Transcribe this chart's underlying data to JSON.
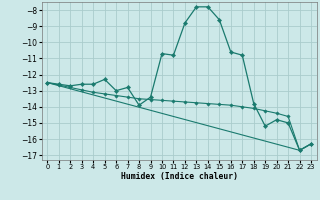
{
  "xlabel": "Humidex (Indice chaleur)",
  "background_color": "#cce8e8",
  "grid_color": "#aacccc",
  "line_color": "#1a7a6e",
  "xlim": [
    -0.5,
    23.5
  ],
  "ylim": [
    -17.3,
    -7.5
  ],
  "yticks": [
    -17,
    -16,
    -15,
    -14,
    -13,
    -12,
    -11,
    -10,
    -9,
    -8
  ],
  "xticks": [
    0,
    1,
    2,
    3,
    4,
    5,
    6,
    7,
    8,
    9,
    10,
    11,
    12,
    13,
    14,
    15,
    16,
    17,
    18,
    19,
    20,
    21,
    22,
    23
  ],
  "series1": [
    [
      0,
      -12.5
    ],
    [
      1,
      -12.6
    ],
    [
      2,
      -12.7
    ],
    [
      3,
      -12.6
    ],
    [
      4,
      -12.6
    ],
    [
      5,
      -12.3
    ],
    [
      6,
      -13.0
    ],
    [
      7,
      -12.8
    ],
    [
      8,
      -13.9
    ],
    [
      9,
      -13.4
    ],
    [
      10,
      -10.7
    ],
    [
      11,
      -10.8
    ],
    [
      12,
      -8.8
    ],
    [
      13,
      -7.8
    ],
    [
      14,
      -7.8
    ],
    [
      15,
      -8.6
    ],
    [
      16,
      -10.6
    ],
    [
      17,
      -10.8
    ],
    [
      18,
      -13.8
    ],
    [
      19,
      -15.2
    ],
    [
      20,
      -14.8
    ],
    [
      21,
      -15.0
    ],
    [
      22,
      -16.7
    ],
    [
      23,
      -16.3
    ]
  ],
  "series2": [
    [
      0,
      -12.5
    ],
    [
      1,
      -12.65
    ],
    [
      2,
      -12.8
    ],
    [
      3,
      -12.95
    ],
    [
      4,
      -13.1
    ],
    [
      5,
      -13.2
    ],
    [
      6,
      -13.3
    ],
    [
      7,
      -13.4
    ],
    [
      8,
      -13.5
    ],
    [
      9,
      -13.55
    ],
    [
      10,
      -13.6
    ],
    [
      11,
      -13.65
    ],
    [
      12,
      -13.7
    ],
    [
      13,
      -13.75
    ],
    [
      14,
      -13.8
    ],
    [
      15,
      -13.85
    ],
    [
      16,
      -13.9
    ],
    [
      17,
      -14.0
    ],
    [
      18,
      -14.1
    ],
    [
      19,
      -14.25
    ],
    [
      20,
      -14.4
    ],
    [
      21,
      -14.6
    ],
    [
      22,
      -16.7
    ],
    [
      23,
      -16.3
    ]
  ],
  "series3": [
    [
      0,
      -12.5
    ],
    [
      22,
      -16.7
    ],
    [
      23,
      -16.3
    ]
  ]
}
